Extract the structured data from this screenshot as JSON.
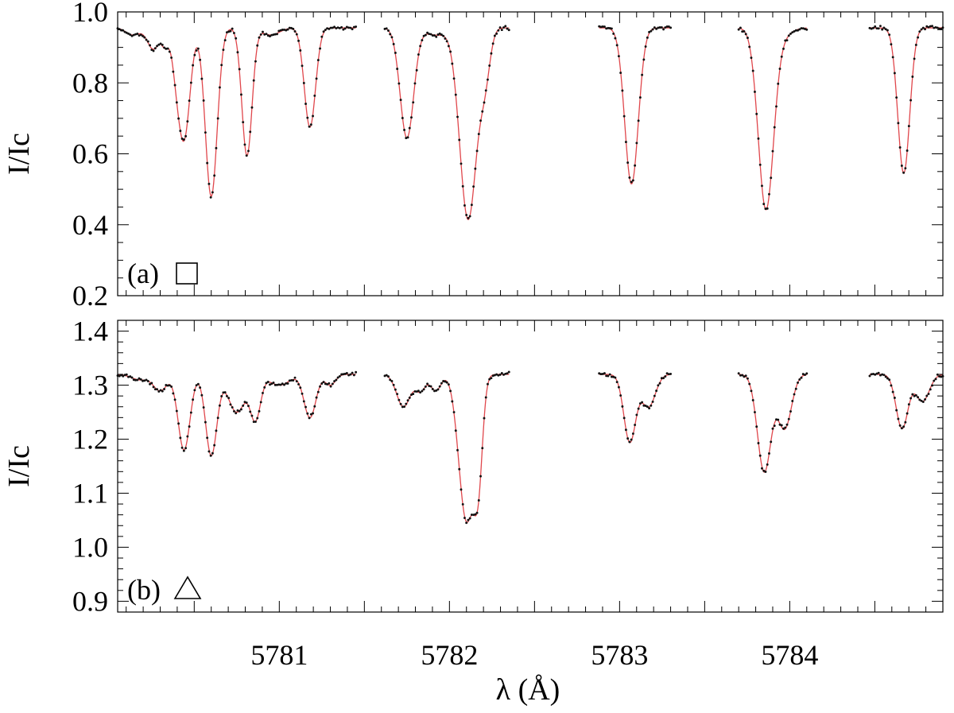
{
  "colors": {
    "model": "#e0474c",
    "observed": "#111111",
    "frame": "#000000"
  },
  "chart_data": [
    {
      "type": "line",
      "panel_label": "(a)",
      "symbol": "square",
      "ylabel": "I/Ic",
      "xlabel": "",
      "xlim": [
        5780.05,
        5784.9
      ],
      "ylim": [
        0.2,
        1.0
      ],
      "y_ticks": [
        "1.0",
        "0.8",
        "0.6",
        "0.4",
        "0.2"
      ],
      "y_tick_values": [
        1.0,
        0.8,
        0.6,
        0.4,
        0.2
      ],
      "y_minor_step": 0.05,
      "x_minor_step": 0.1,
      "continuum": 0.955,
      "segments": [
        [
          5780.05,
          5781.45
        ],
        [
          5781.62,
          5782.35
        ],
        [
          5782.88,
          5783.3
        ],
        [
          5783.7,
          5784.1
        ],
        [
          5784.47,
          5784.9
        ]
      ],
      "lines": [
        {
          "center": 5780.14,
          "depth": 0.02,
          "width": 0.04
        },
        {
          "center": 5780.26,
          "depth": 0.06,
          "width": 0.035
        },
        {
          "center": 5780.33,
          "depth": 0.045,
          "width": 0.02
        },
        {
          "center": 5780.39,
          "depth": 0.065,
          "width": 0.025
        },
        {
          "center": 5780.44,
          "depth": 0.31,
          "width": 0.035
        },
        {
          "center": 5780.6,
          "depth": 0.475,
          "width": 0.035
        },
        {
          "center": 5780.81,
          "depth": 0.36,
          "width": 0.03
        },
        {
          "center": 5780.95,
          "depth": 0.02,
          "width": 0.05
        },
        {
          "center": 5781.18,
          "depth": 0.28,
          "width": 0.033
        },
        {
          "center": 5781.75,
          "depth": 0.31,
          "width": 0.04
        },
        {
          "center": 5781.92,
          "depth": 0.02,
          "width": 0.06
        },
        {
          "center": 5782.11,
          "depth": 0.54,
          "width": 0.05
        },
        {
          "center": 5782.21,
          "depth": 0.12,
          "width": 0.03
        },
        {
          "center": 5783.07,
          "depth": 0.44,
          "width": 0.04
        },
        {
          "center": 5783.86,
          "depth": 0.51,
          "width": 0.045
        },
        {
          "center": 5783.96,
          "depth": 0.02,
          "width": 0.05
        },
        {
          "center": 5784.67,
          "depth": 0.41,
          "width": 0.035
        }
      ]
    },
    {
      "type": "line",
      "panel_label": "(b)",
      "symbol": "triangle",
      "ylabel": "I/Ic",
      "xlabel": "λ (Å)",
      "xlim": [
        5780.05,
        5784.9
      ],
      "ylim": [
        0.88,
        1.42
      ],
      "x_ticks": [
        "5781",
        "5782",
        "5783",
        "5784"
      ],
      "x_tick_values": [
        5781,
        5782,
        5783,
        5784
      ],
      "y_ticks": [
        "1.4",
        "1.3",
        "1.2",
        "1.1",
        "1.0",
        "0.9"
      ],
      "y_tick_values": [
        1.4,
        1.3,
        1.2,
        1.1,
        1.0,
        0.9
      ],
      "y_minor_step": 0.02,
      "x_minor_step": 0.1,
      "continuum": 1.32,
      "segments": [
        [
          5780.05,
          5781.45
        ],
        [
          5781.62,
          5782.35
        ],
        [
          5782.88,
          5783.3
        ],
        [
          5783.7,
          5784.1
        ],
        [
          5784.47,
          5784.9
        ]
      ],
      "lines": [
        {
          "center": 5780.18,
          "depth": 0.01,
          "width": 0.05
        },
        {
          "center": 5780.3,
          "depth": 0.03,
          "width": 0.04
        },
        {
          "center": 5780.44,
          "depth": 0.14,
          "width": 0.035
        },
        {
          "center": 5780.6,
          "depth": 0.15,
          "width": 0.033
        },
        {
          "center": 5780.75,
          "depth": 0.07,
          "width": 0.05
        },
        {
          "center": 5780.86,
          "depth": 0.08,
          "width": 0.03
        },
        {
          "center": 5781.0,
          "depth": 0.02,
          "width": 0.06
        },
        {
          "center": 5781.18,
          "depth": 0.08,
          "width": 0.035
        },
        {
          "center": 5781.3,
          "depth": 0.02,
          "width": 0.03
        },
        {
          "center": 5781.73,
          "depth": 0.06,
          "width": 0.04
        },
        {
          "center": 5781.83,
          "depth": 0.03,
          "width": 0.03
        },
        {
          "center": 5781.92,
          "depth": 0.03,
          "width": 0.03
        },
        {
          "center": 5782.1,
          "depth": 0.27,
          "width": 0.045
        },
        {
          "center": 5782.17,
          "depth": 0.16,
          "width": 0.025
        },
        {
          "center": 5783.06,
          "depth": 0.125,
          "width": 0.035
        },
        {
          "center": 5783.17,
          "depth": 0.06,
          "width": 0.04
        },
        {
          "center": 5783.85,
          "depth": 0.18,
          "width": 0.04
        },
        {
          "center": 5783.97,
          "depth": 0.1,
          "width": 0.04
        },
        {
          "center": 5784.66,
          "depth": 0.1,
          "width": 0.035
        },
        {
          "center": 5784.78,
          "depth": 0.05,
          "width": 0.04
        }
      ]
    }
  ]
}
